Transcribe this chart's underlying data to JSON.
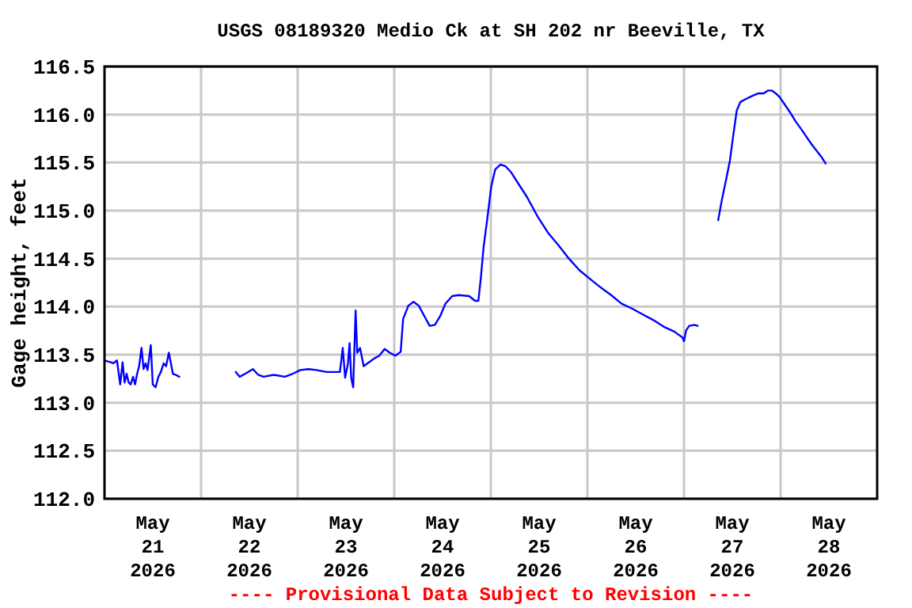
{
  "chart_data": {
    "type": "line",
    "title": "USGS 08189320 Medio Ck at SH 202 nr Beeville, TX",
    "ylabel": "Gage height, feet",
    "annotations": [
      "---- Provisional Data Subject to Revision ----"
    ],
    "xlim": [
      "2026-05-21T00:00",
      "2026-05-29T00:00"
    ],
    "ylim": [
      112,
      116.5
    ],
    "xticks": [
      {
        "value": "2026-05-21T12:00",
        "label": "May\n21\n2026"
      },
      {
        "value": "2026-05-22T00:00",
        "label": null
      },
      {
        "value": "2026-05-22T12:00",
        "label": "May\n22\n2026"
      },
      {
        "value": "2026-05-23T00:00",
        "label": null
      },
      {
        "value": "2026-05-23T12:00",
        "label": "May\n23\n2026"
      },
      {
        "value": "2026-05-24T00:00",
        "label": null
      },
      {
        "value": "2026-05-24T12:00",
        "label": "May\n24\n2026"
      },
      {
        "value": "2026-05-25T00:00",
        "label": null
      },
      {
        "value": "2026-05-25T12:00",
        "label": "May\n25\n2026"
      },
      {
        "value": "2026-05-26T00:00",
        "label": null
      },
      {
        "value": "2026-05-26T12:00",
        "label": "May\n26\n2026"
      },
      {
        "value": "2026-05-27T00:00",
        "label": null
      },
      {
        "value": "2026-05-27T12:00",
        "label": "May\n27\n2026"
      },
      {
        "value": "2026-05-28T00:00",
        "label": null
      },
      {
        "value": "2026-05-28T12:00",
        "label": "May\n28\n2026"
      }
    ],
    "yticks": [
      {
        "value": 112,
        "label": "112.0"
      },
      {
        "value": 112.5,
        "label": "112.5"
      },
      {
        "value": 113,
        "label": "113.0"
      },
      {
        "value": 113.5,
        "label": "113.5"
      },
      {
        "value": 114,
        "label": "114.0"
      },
      {
        "value": 114.5,
        "label": "114.5"
      },
      {
        "value": 115,
        "label": "115.0"
      },
      {
        "value": 115.5,
        "label": "115.5"
      },
      {
        "value": 116,
        "label": "116.0"
      },
      {
        "value": 116.5,
        "label": "116.5"
      }
    ],
    "grid": true,
    "marker": "none",
    "line_style": "solid",
    "series": [
      {
        "color": "#0000ff",
        "x": [
          "2026-05-21T00:00",
          "2026-05-21T01:36",
          "2026-05-21T02:12",
          "2026-05-21T03:06",
          "2026-05-21T03:54",
          "2026-05-21T04:30",
          "2026-05-21T05:00",
          "2026-05-21T05:30",
          "2026-05-21T06:00",
          "2026-05-21T06:30",
          "2026-05-21T07:06",
          "2026-05-21T07:36",
          "2026-05-21T08:06",
          "2026-05-21T08:36",
          "2026-05-21T09:12",
          "2026-05-21T09:42",
          "2026-05-21T10:12",
          "2026-05-21T10:42",
          "2026-05-21T11:30",
          "2026-05-21T12:00",
          "2026-05-21T12:42",
          "2026-05-21T13:24",
          "2026-05-21T14:00",
          "2026-05-21T14:42",
          "2026-05-21T15:18",
          "2026-05-21T16:00",
          "2026-05-21T16:30",
          "2026-05-21T17:00",
          "2026-05-21T17:42",
          "2026-05-21T18:36",
          "2026-05-22T01:00",
          "2026-05-22T08:36",
          "2026-05-22T09:36",
          "2026-05-22T10:54",
          "2026-05-22T12:54",
          "2026-05-22T14:12",
          "2026-05-22T15:30",
          "2026-05-22T18:06",
          "2026-05-22T20:48",
          "2026-05-22T22:42",
          "2026-05-23T00:42",
          "2026-05-23T02:42",
          "2026-05-23T04:36",
          "2026-05-23T07:12",
          "2026-05-23T10:30",
          "2026-05-23T11:12",
          "2026-05-23T11:48",
          "2026-05-23T12:30",
          "2026-05-23T12:54",
          "2026-05-23T13:18",
          "2026-05-23T13:48",
          "2026-05-23T14:24",
          "2026-05-23T14:48",
          "2026-05-23T15:30",
          "2026-05-23T16:24",
          "2026-05-23T17:42",
          "2026-05-23T19:00",
          "2026-05-23T20:18",
          "2026-05-23T21:36",
          "2026-05-23T22:54",
          "2026-05-24T00:18",
          "2026-05-24T01:36",
          "2026-05-24T02:12",
          "2026-05-24T03:30",
          "2026-05-24T04:48",
          "2026-05-24T06:06",
          "2026-05-24T07:30",
          "2026-05-24T08:48",
          "2026-05-24T10:06",
          "2026-05-24T11:24",
          "2026-05-24T12:42",
          "2026-05-24T14:24",
          "2026-05-24T16:00",
          "2026-05-24T18:36",
          "2026-05-24T20:06",
          "2026-05-24T20:54",
          "2026-05-24T21:30",
          "2026-05-24T22:12",
          "2026-05-24T23:12",
          "2026-05-25T00:06",
          "2026-05-25T01:06",
          "2026-05-25T02:24",
          "2026-05-25T03:42",
          "2026-05-25T05:00",
          "2026-05-25T07:00",
          "2026-05-25T09:00",
          "2026-05-25T11:36",
          "2026-05-25T14:12",
          "2026-05-25T16:48",
          "2026-05-25T19:24",
          "2026-05-25T22:00",
          "2026-05-26T00:36",
          "2026-05-26T03:18",
          "2026-05-26T05:54",
          "2026-05-26T08:30",
          "2026-05-26T11:06",
          "2026-05-26T13:42",
          "2026-05-26T16:24",
          "2026-05-26T19:00",
          "2026-05-26T21:36",
          "2026-05-26T23:36",
          "2026-05-27T00:00",
          "2026-05-27T00:30",
          "2026-05-27T01:18",
          "2026-05-27T02:36",
          "2026-05-27T03:24",
          "2026-05-27T06:00",
          "2026-05-27T08:30",
          "2026-05-27T09:24",
          "2026-05-27T10:30",
          "2026-05-27T11:24",
          "2026-05-27T12:18",
          "2026-05-27T13:06",
          "2026-05-27T14:00",
          "2026-05-27T15:18",
          "2026-05-27T17:18",
          "2026-05-27T18:30",
          "2026-05-27T19:48",
          "2026-05-27T20:54",
          "2026-05-27T21:48",
          "2026-05-27T22:48",
          "2026-05-27T23:48",
          "2026-05-28T01:06",
          "2026-05-28T02:24",
          "2026-05-28T03:42",
          "2026-05-28T05:06",
          "2026-05-28T06:24",
          "2026-05-28T07:42",
          "2026-05-28T09:00",
          "2026-05-28T10:18",
          "2026-05-28T11:12"
        ],
        "values": [
          113.44,
          113.42,
          113.41,
          113.44,
          113.19,
          113.42,
          113.21,
          113.3,
          113.21,
          113.19,
          113.27,
          113.19,
          113.3,
          113.38,
          113.57,
          113.35,
          113.41,
          113.34,
          113.6,
          113.19,
          113.16,
          113.27,
          113.32,
          113.41,
          113.38,
          113.52,
          113.41,
          113.3,
          113.29,
          113.27,
          null,
          113.32,
          113.27,
          113.3,
          113.35,
          113.29,
          113.27,
          113.29,
          113.27,
          113.3,
          113.34,
          113.35,
          113.34,
          113.32,
          113.32,
          113.57,
          113.26,
          113.41,
          113.62,
          113.26,
          113.16,
          113.96,
          113.52,
          113.57,
          113.38,
          113.42,
          113.46,
          113.49,
          113.56,
          113.52,
          113.49,
          113.53,
          113.87,
          114.01,
          114.05,
          114.01,
          113.9,
          113.8,
          113.81,
          113.9,
          114.03,
          114.11,
          114.12,
          114.11,
          114.06,
          114.06,
          114.29,
          114.62,
          114.94,
          115.25,
          115.43,
          115.48,
          115.46,
          115.4,
          115.27,
          115.14,
          114.94,
          114.77,
          114.64,
          114.5,
          114.38,
          114.29,
          114.2,
          114.12,
          114.03,
          113.98,
          113.92,
          113.86,
          113.79,
          113.74,
          113.68,
          113.64,
          113.75,
          113.8,
          113.81,
          113.8,
          null,
          114.9,
          115.11,
          115.33,
          115.52,
          115.8,
          116.04,
          116.13,
          116.16,
          116.2,
          116.22,
          116.22,
          116.25,
          116.25,
          116.22,
          116.18,
          116.1,
          116.02,
          115.93,
          115.85,
          115.77,
          115.69,
          115.62,
          115.55,
          115.49
        ]
      }
    ]
  }
}
